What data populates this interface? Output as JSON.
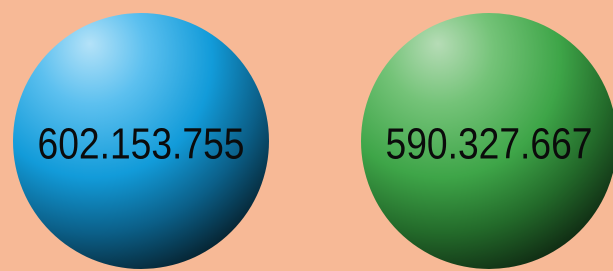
{
  "spheres": [
    {
      "label": "602.153.755"
    },
    {
      "label": "590.327.667"
    }
  ]
}
